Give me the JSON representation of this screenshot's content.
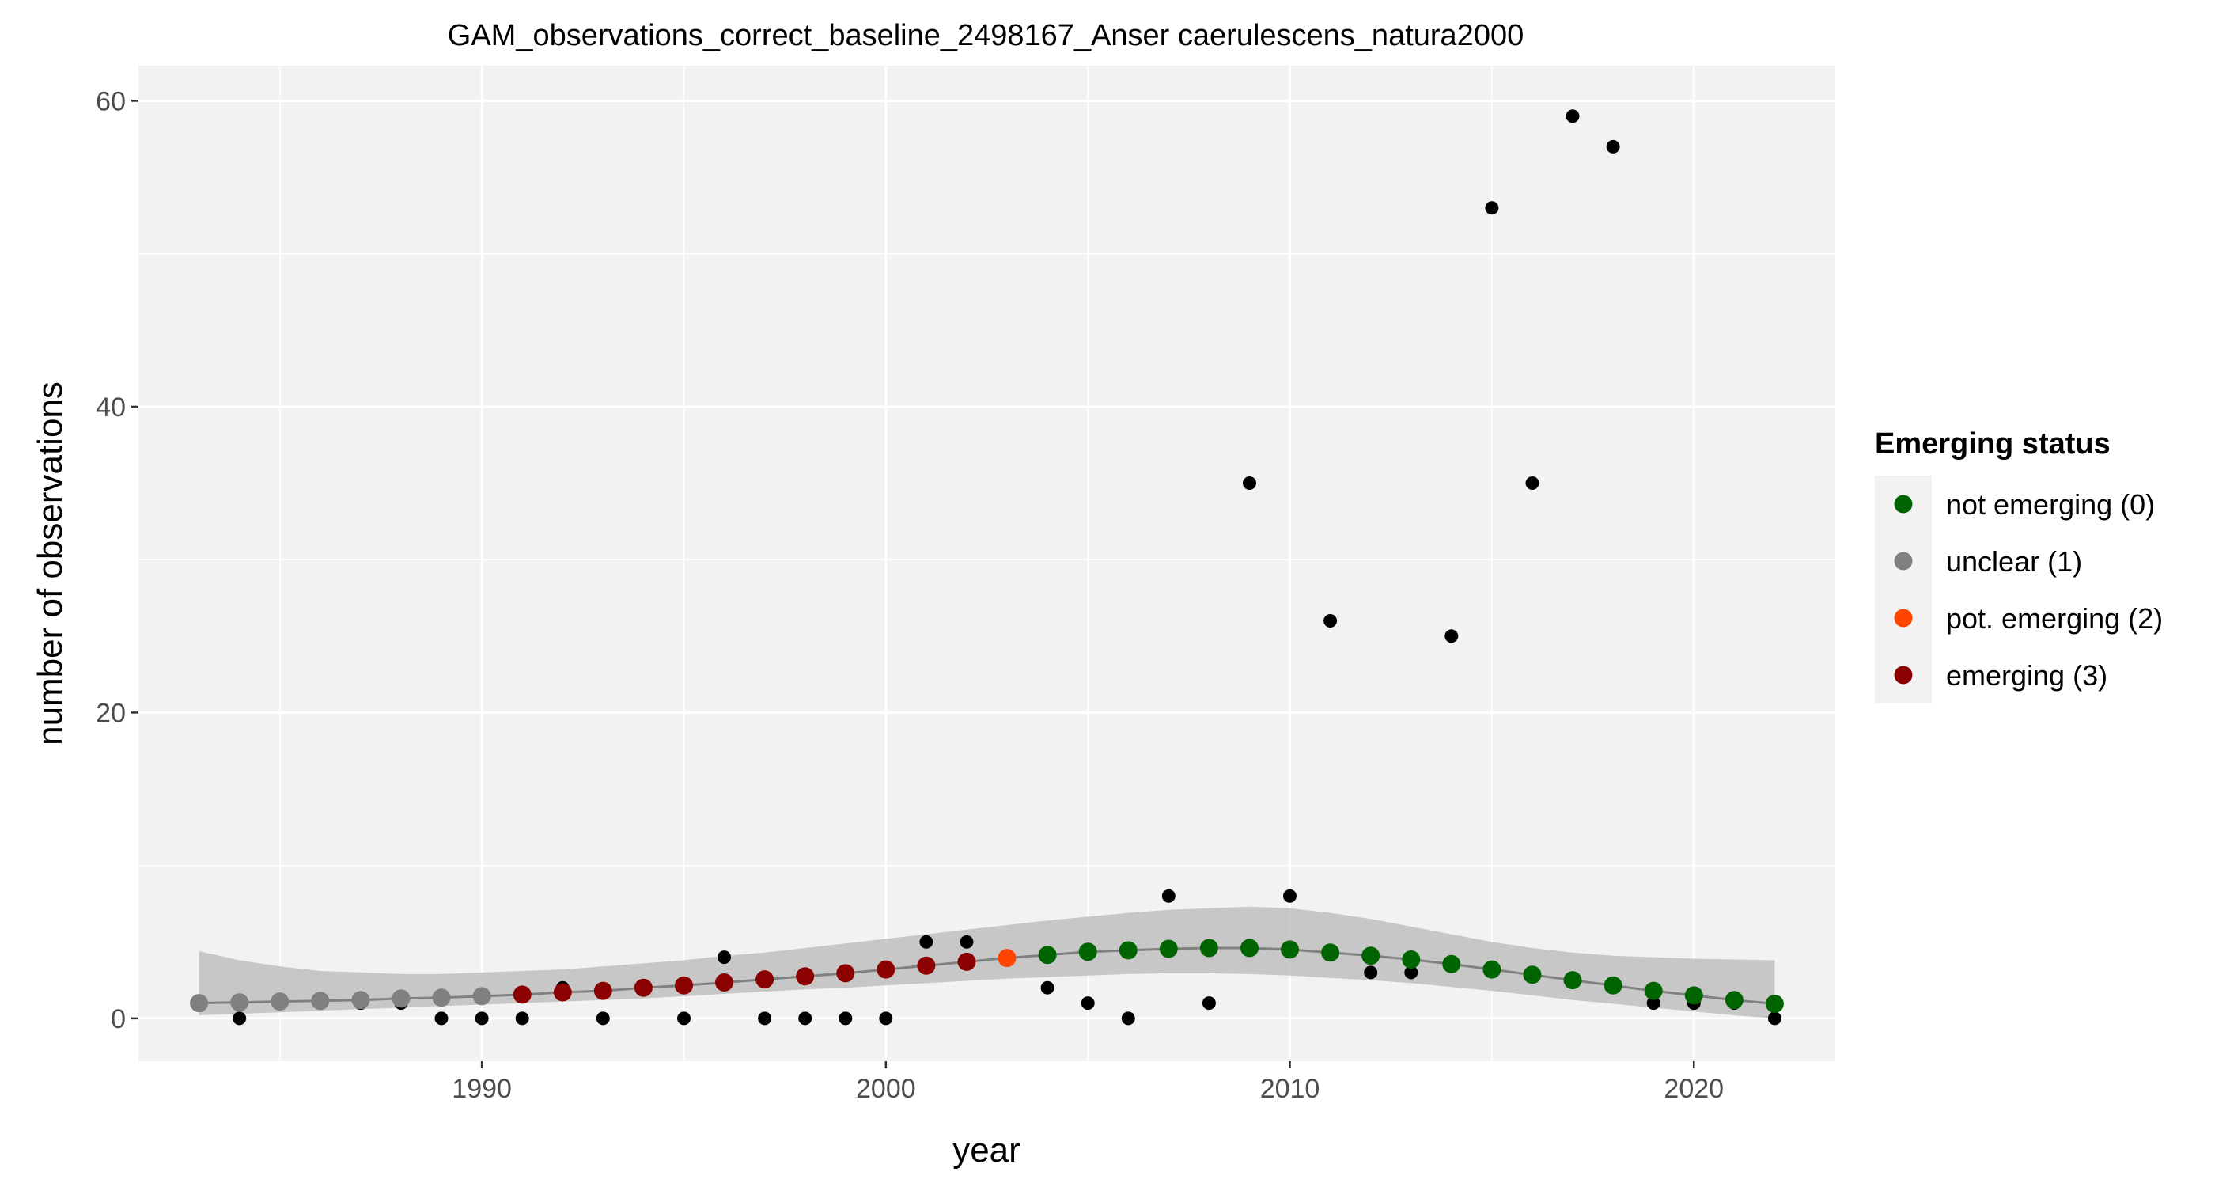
{
  "chart_data": {
    "type": "scatter",
    "title": "GAM_observations_correct_baseline_2498167_Anser caerulescens_natura2000",
    "xlabel": "year",
    "ylabel": "number of observations",
    "xlim": [
      1981.5,
      2023.5
    ],
    "ylim": [
      -2.8,
      62.3
    ],
    "x_ticks": [
      1990,
      2000,
      2010,
      2020
    ],
    "y_ticks": [
      0,
      20,
      40,
      60
    ],
    "grid": true,
    "legend": {
      "title": "Emerging status",
      "placement": "right",
      "entries": [
        {
          "label": "not emerging (0)",
          "color": "#006400"
        },
        {
          "label": "unclear (1)",
          "color": "#808080"
        },
        {
          "label": "pot. emerging (2)",
          "color": "#FF4500"
        },
        {
          "label": "emerging (3)",
          "color": "#8B0000"
        }
      ]
    },
    "observations": {
      "color": "#000000",
      "points": [
        [
          1983,
          1
        ],
        [
          1984,
          0
        ],
        [
          1985,
          1
        ],
        [
          1986,
          1
        ],
        [
          1987,
          1
        ],
        [
          1988,
          1
        ],
        [
          1989,
          0
        ],
        [
          1990,
          0
        ],
        [
          1991,
          0
        ],
        [
          1992,
          2
        ],
        [
          1993,
          0
        ],
        [
          1994,
          2
        ],
        [
          1995,
          0
        ],
        [
          1996,
          4
        ],
        [
          1997,
          0
        ],
        [
          1998,
          0
        ],
        [
          1999,
          0
        ],
        [
          2000,
          0
        ],
        [
          2001,
          5
        ],
        [
          2002,
          5
        ],
        [
          2003,
          4
        ],
        [
          2004,
          2
        ],
        [
          2005,
          1
        ],
        [
          2006,
          0
        ],
        [
          2007,
          8
        ],
        [
          2008,
          1
        ],
        [
          2009,
          35
        ],
        [
          2010,
          8
        ],
        [
          2011,
          26
        ],
        [
          2012,
          3
        ],
        [
          2013,
          3
        ],
        [
          2014,
          25
        ],
        [
          2015,
          53
        ],
        [
          2016,
          35
        ],
        [
          2017,
          59
        ],
        [
          2018,
          57
        ],
        [
          2019,
          1
        ],
        [
          2020,
          1
        ],
        [
          2021,
          1
        ],
        [
          2022,
          0
        ]
      ]
    },
    "gam_fit": {
      "line_color": "#808080",
      "ribbon_color": "#BFBFBF",
      "points": [
        {
          "x": 1983,
          "y": 1.0,
          "lower": 0.2,
          "upper": 4.4,
          "status": 1
        },
        {
          "x": 1984,
          "y": 1.05,
          "lower": 0.3,
          "upper": 3.8,
          "status": 1
        },
        {
          "x": 1985,
          "y": 1.1,
          "lower": 0.4,
          "upper": 3.4,
          "status": 1
        },
        {
          "x": 1986,
          "y": 1.15,
          "lower": 0.5,
          "upper": 3.1,
          "status": 1
        },
        {
          "x": 1987,
          "y": 1.2,
          "lower": 0.6,
          "upper": 3.0,
          "status": 1
        },
        {
          "x": 1988,
          "y": 1.3,
          "lower": 0.7,
          "upper": 2.9,
          "status": 1
        },
        {
          "x": 1989,
          "y": 1.35,
          "lower": 0.8,
          "upper": 2.9,
          "status": 1
        },
        {
          "x": 1990,
          "y": 1.45,
          "lower": 0.9,
          "upper": 3.0,
          "status": 1
        },
        {
          "x": 1991,
          "y": 1.55,
          "lower": 1.0,
          "upper": 3.1,
          "status": 3
        },
        {
          "x": 1992,
          "y": 1.7,
          "lower": 1.1,
          "upper": 3.2,
          "status": 3
        },
        {
          "x": 1993,
          "y": 1.8,
          "lower": 1.2,
          "upper": 3.4,
          "status": 3
        },
        {
          "x": 1994,
          "y": 2.0,
          "lower": 1.3,
          "upper": 3.6,
          "status": 3
        },
        {
          "x": 1995,
          "y": 2.15,
          "lower": 1.45,
          "upper": 3.8,
          "status": 3
        },
        {
          "x": 1996,
          "y": 2.35,
          "lower": 1.6,
          "upper": 4.1,
          "status": 3
        },
        {
          "x": 1997,
          "y": 2.55,
          "lower": 1.75,
          "upper": 4.3,
          "status": 3
        },
        {
          "x": 1998,
          "y": 2.75,
          "lower": 1.9,
          "upper": 4.6,
          "status": 3
        },
        {
          "x": 1999,
          "y": 2.95,
          "lower": 2.0,
          "upper": 4.9,
          "status": 3
        },
        {
          "x": 2000,
          "y": 3.2,
          "lower": 2.15,
          "upper": 5.2,
          "status": 3
        },
        {
          "x": 2001,
          "y": 3.45,
          "lower": 2.3,
          "upper": 5.5,
          "status": 3
        },
        {
          "x": 2002,
          "y": 3.7,
          "lower": 2.45,
          "upper": 5.8,
          "status": 3
        },
        {
          "x": 2003,
          "y": 3.95,
          "lower": 2.6,
          "upper": 6.1,
          "status": 2
        },
        {
          "x": 2004,
          "y": 4.15,
          "lower": 2.7,
          "upper": 6.4,
          "status": 0
        },
        {
          "x": 2005,
          "y": 4.35,
          "lower": 2.8,
          "upper": 6.65,
          "status": 0
        },
        {
          "x": 2006,
          "y": 4.45,
          "lower": 2.9,
          "upper": 6.9,
          "status": 0
        },
        {
          "x": 2007,
          "y": 4.55,
          "lower": 2.95,
          "upper": 7.1,
          "status": 0
        },
        {
          "x": 2008,
          "y": 4.6,
          "lower": 2.95,
          "upper": 7.2,
          "status": 0
        },
        {
          "x": 2009,
          "y": 4.6,
          "lower": 2.9,
          "upper": 7.3,
          "status": 0
        },
        {
          "x": 2010,
          "y": 4.5,
          "lower": 2.8,
          "upper": 7.2,
          "status": 0
        },
        {
          "x": 2011,
          "y": 4.3,
          "lower": 2.65,
          "upper": 6.9,
          "status": 0
        },
        {
          "x": 2012,
          "y": 4.1,
          "lower": 2.5,
          "upper": 6.5,
          "status": 0
        },
        {
          "x": 2013,
          "y": 3.85,
          "lower": 2.3,
          "upper": 6.0,
          "status": 0
        },
        {
          "x": 2014,
          "y": 3.55,
          "lower": 2.05,
          "upper": 5.5,
          "status": 0
        },
        {
          "x": 2015,
          "y": 3.2,
          "lower": 1.8,
          "upper": 5.0,
          "status": 0
        },
        {
          "x": 2016,
          "y": 2.85,
          "lower": 1.5,
          "upper": 4.6,
          "status": 0
        },
        {
          "x": 2017,
          "y": 2.5,
          "lower": 1.2,
          "upper": 4.3,
          "status": 0
        },
        {
          "x": 2018,
          "y": 2.15,
          "lower": 0.95,
          "upper": 4.1,
          "status": 0
        },
        {
          "x": 2019,
          "y": 1.8,
          "lower": 0.7,
          "upper": 4.0,
          "status": 0
        },
        {
          "x": 2020,
          "y": 1.5,
          "lower": 0.45,
          "upper": 3.9,
          "status": 0
        },
        {
          "x": 2021,
          "y": 1.2,
          "lower": 0.2,
          "upper": 3.85,
          "status": 0
        },
        {
          "x": 2022,
          "y": 0.95,
          "lower": 0.0,
          "upper": 3.8,
          "status": 0
        }
      ]
    }
  }
}
